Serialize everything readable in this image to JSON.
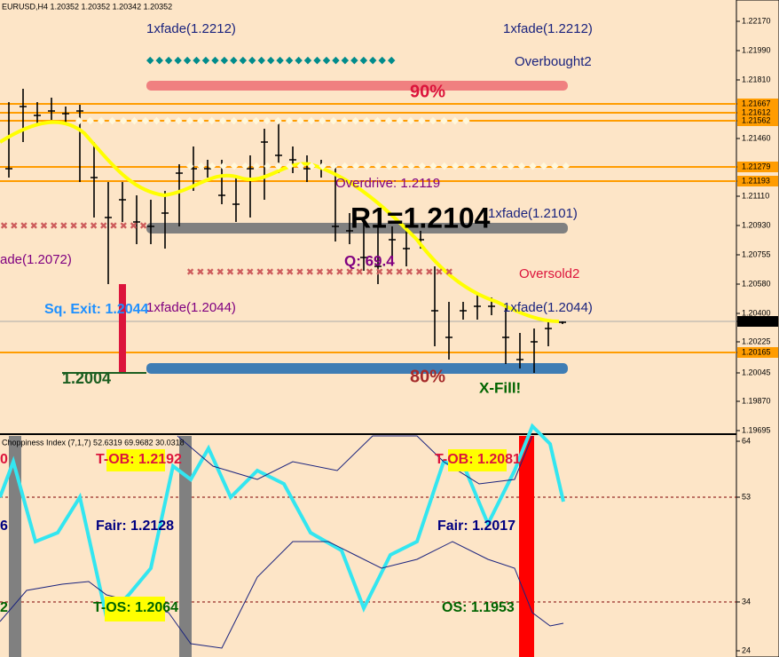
{
  "header": {
    "symbol": "EURUSD,H4  1.20352 1.20352 1.20342 1.20352"
  },
  "price_axis": {
    "labels": [
      "1.22170",
      "1.21990",
      "1.21810",
      "1.21667",
      "1.21612",
      "1.21562",
      "1.21460",
      "1.21279",
      "1.21193",
      "1.21110",
      "1.20930",
      "1.20755",
      "1.20580",
      "1.20400",
      "1.20352",
      "1.20225",
      "1.20165",
      "1.20045",
      "1.19870",
      "1.19695"
    ]
  },
  "annotations": {
    "fade_top_left": "1xfade(1.2212)",
    "fade_top_right": "1xfade(1.2212)",
    "overbought": "Overbought2",
    "pct_top": "90%",
    "overdrive": "Overdrive: 1.2119",
    "r1": "R1=1.2104",
    "fade_mid_right": "1xfade(1.2101)",
    "fade_left": "ade(1.2072)",
    "q": "Q: 69.4",
    "oversold": "Oversold2",
    "sq_exit": "Sq. Exit: 1.2044",
    "fade_low_left": "1xfade(1.2044)",
    "fade_low_right": "1xfade(1.2044)",
    "low_level": "1.2004",
    "pct_bottom": "80%",
    "x_fill": "X-Fill!"
  },
  "indicator": {
    "title": "Choppiness Index (7,1,7) 52.6319 69.9682 30.0318",
    "axis_labels": [
      "64",
      "53",
      "34",
      "24"
    ],
    "left_cut": [
      "0",
      "6",
      "2"
    ],
    "t_ob_left": "T-OB: 1.2192",
    "t_ob_right": "T-OB: 1.2081",
    "fair_left": "Fair: 1.2128",
    "fair_right": "Fair: 1.2017",
    "t_os_left": "T-OS: 1.2064",
    "os_right": "OS: 1.1953"
  }
}
